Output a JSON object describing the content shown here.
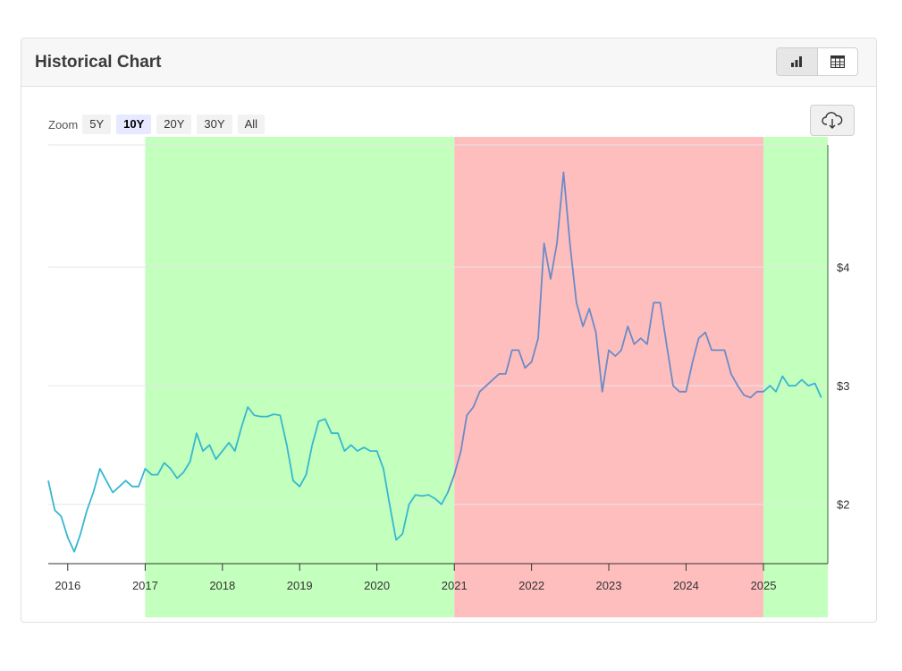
{
  "header": {
    "title": "Historical Chart",
    "view_buttons": [
      {
        "icon": "bar-chart-icon",
        "active": true
      },
      {
        "icon": "table-icon",
        "active": false
      }
    ]
  },
  "zoom": {
    "label": "Zoom",
    "options": [
      "5Y",
      "10Y",
      "20Y",
      "30Y",
      "All"
    ],
    "selected": "10Y"
  },
  "download": {
    "icon": "cloud-download-icon"
  },
  "colors": {
    "band_green": "#c3ffbd",
    "band_red": "#ffbebe",
    "line_green_zone": "#35b8d0",
    "line_red_zone": "#6a8bc7",
    "grid": "#e6e6e6",
    "axis": "#333333"
  },
  "chart_data": {
    "type": "line",
    "x_type": "date",
    "xlim": [
      "2015-10-01",
      "2025-11-01"
    ],
    "ylim": [
      1.5,
      5.03
    ],
    "x_ticks": [
      "2016",
      "2017",
      "2018",
      "2019",
      "2020",
      "2021",
      "2022",
      "2023",
      "2024",
      "2025"
    ],
    "y_ticks": [
      {
        "value": 2,
        "label": "$2"
      },
      {
        "value": 3,
        "label": "$3"
      },
      {
        "value": 4,
        "label": "$4"
      }
    ],
    "y_axis_position": "right",
    "grid": true,
    "legend": "none",
    "bands": [
      {
        "start": "2017-01-01",
        "end": "2021-01-01",
        "color": "#c3ffbd"
      },
      {
        "start": "2021-01-01",
        "end": "2025-01-01",
        "color": "#ffbebe"
      },
      {
        "start": "2025-01-01",
        "end": "2025-11-01",
        "color": "#c3ffbd"
      }
    ],
    "series": [
      {
        "points": [
          [
            "2015-10-01",
            2.2
          ],
          [
            "2015-11-01",
            1.95
          ],
          [
            "2015-12-01",
            1.9
          ],
          [
            "2016-01-01",
            1.72
          ],
          [
            "2016-02-01",
            1.6
          ],
          [
            "2016-03-01",
            1.75
          ],
          [
            "2016-04-01",
            1.95
          ],
          [
            "2016-05-01",
            2.1
          ],
          [
            "2016-06-01",
            2.3
          ],
          [
            "2016-07-01",
            2.2
          ],
          [
            "2016-08-01",
            2.1
          ],
          [
            "2016-09-01",
            2.15
          ],
          [
            "2016-10-01",
            2.2
          ],
          [
            "2016-11-01",
            2.15
          ],
          [
            "2016-12-01",
            2.15
          ],
          [
            "2017-01-01",
            2.3
          ],
          [
            "2017-02-01",
            2.25
          ],
          [
            "2017-03-01",
            2.25
          ],
          [
            "2017-04-01",
            2.35
          ],
          [
            "2017-05-01",
            2.3
          ],
          [
            "2017-06-01",
            2.22
          ],
          [
            "2017-07-01",
            2.27
          ],
          [
            "2017-08-01",
            2.36
          ],
          [
            "2017-09-01",
            2.6
          ],
          [
            "2017-10-01",
            2.45
          ],
          [
            "2017-11-01",
            2.5
          ],
          [
            "2017-12-01",
            2.38
          ],
          [
            "2018-01-01",
            2.45
          ],
          [
            "2018-02-01",
            2.52
          ],
          [
            "2018-03-01",
            2.45
          ],
          [
            "2018-04-01",
            2.65
          ],
          [
            "2018-05-01",
            2.82
          ],
          [
            "2018-06-01",
            2.75
          ],
          [
            "2018-07-01",
            2.74
          ],
          [
            "2018-08-01",
            2.74
          ],
          [
            "2018-09-01",
            2.76
          ],
          [
            "2018-10-01",
            2.75
          ],
          [
            "2018-11-01",
            2.5
          ],
          [
            "2018-12-01",
            2.2
          ],
          [
            "2019-01-01",
            2.15
          ],
          [
            "2019-02-01",
            2.25
          ],
          [
            "2019-03-01",
            2.5
          ],
          [
            "2019-04-01",
            2.7
          ],
          [
            "2019-05-01",
            2.72
          ],
          [
            "2019-06-01",
            2.6
          ],
          [
            "2019-07-01",
            2.6
          ],
          [
            "2019-08-01",
            2.45
          ],
          [
            "2019-09-01",
            2.5
          ],
          [
            "2019-10-01",
            2.45
          ],
          [
            "2019-11-01",
            2.48
          ],
          [
            "2019-12-01",
            2.45
          ],
          [
            "2020-01-01",
            2.45
          ],
          [
            "2020-02-01",
            2.3
          ],
          [
            "2020-03-01",
            2.0
          ],
          [
            "2020-04-01",
            1.7
          ],
          [
            "2020-05-01",
            1.75
          ],
          [
            "2020-06-01",
            2.0
          ],
          [
            "2020-07-01",
            2.08
          ],
          [
            "2020-08-01",
            2.07
          ],
          [
            "2020-09-01",
            2.08
          ],
          [
            "2020-10-01",
            2.05
          ],
          [
            "2020-11-01",
            2.0
          ],
          [
            "2020-12-01",
            2.1
          ],
          [
            "2021-01-01",
            2.25
          ],
          [
            "2021-02-01",
            2.45
          ],
          [
            "2021-03-01",
            2.75
          ],
          [
            "2021-04-01",
            2.82
          ],
          [
            "2021-05-01",
            2.95
          ],
          [
            "2021-06-01",
            3.0
          ],
          [
            "2021-07-01",
            3.05
          ],
          [
            "2021-08-01",
            3.1
          ],
          [
            "2021-09-01",
            3.1
          ],
          [
            "2021-10-01",
            3.3
          ],
          [
            "2021-11-01",
            3.3
          ],
          [
            "2021-12-01",
            3.15
          ],
          [
            "2022-01-01",
            3.2
          ],
          [
            "2022-02-01",
            3.4
          ],
          [
            "2022-03-01",
            4.2
          ],
          [
            "2022-04-01",
            3.9
          ],
          [
            "2022-05-01",
            4.2
          ],
          [
            "2022-06-01",
            4.8
          ],
          [
            "2022-07-01",
            4.2
          ],
          [
            "2022-08-01",
            3.7
          ],
          [
            "2022-09-01",
            3.5
          ],
          [
            "2022-10-01",
            3.65
          ],
          [
            "2022-11-01",
            3.45
          ],
          [
            "2022-12-01",
            2.95
          ],
          [
            "2023-01-01",
            3.3
          ],
          [
            "2023-02-01",
            3.25
          ],
          [
            "2023-03-01",
            3.3
          ],
          [
            "2023-04-01",
            3.5
          ],
          [
            "2023-05-01",
            3.35
          ],
          [
            "2023-06-01",
            3.4
          ],
          [
            "2023-07-01",
            3.35
          ],
          [
            "2023-08-01",
            3.7
          ],
          [
            "2023-09-01",
            3.7
          ],
          [
            "2023-10-01",
            3.35
          ],
          [
            "2023-11-01",
            3.0
          ],
          [
            "2023-12-01",
            2.95
          ],
          [
            "2024-01-01",
            2.95
          ],
          [
            "2024-02-01",
            3.2
          ],
          [
            "2024-03-01",
            3.4
          ],
          [
            "2024-04-01",
            3.45
          ],
          [
            "2024-05-01",
            3.3
          ],
          [
            "2024-06-01",
            3.3
          ],
          [
            "2024-07-01",
            3.3
          ],
          [
            "2024-08-01",
            3.1
          ],
          [
            "2024-09-01",
            3.0
          ],
          [
            "2024-10-01",
            2.92
          ],
          [
            "2024-11-01",
            2.9
          ],
          [
            "2024-12-01",
            2.95
          ],
          [
            "2025-01-01",
            2.95
          ],
          [
            "2025-02-01",
            3.0
          ],
          [
            "2025-03-01",
            2.95
          ],
          [
            "2025-04-01",
            3.08
          ],
          [
            "2025-05-01",
            3.0
          ],
          [
            "2025-06-01",
            3.0
          ],
          [
            "2025-07-01",
            3.05
          ],
          [
            "2025-08-01",
            3.0
          ],
          [
            "2025-09-01",
            3.02
          ],
          [
            "2025-10-01",
            2.9
          ]
        ]
      }
    ]
  }
}
